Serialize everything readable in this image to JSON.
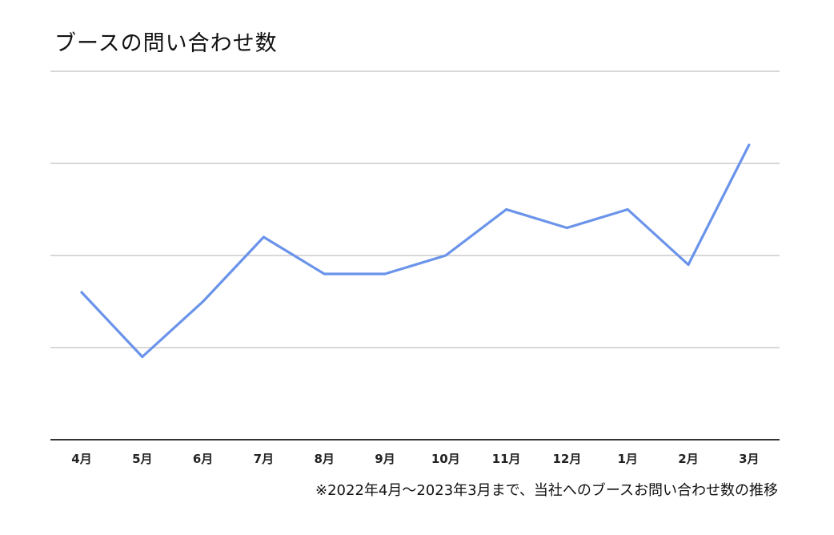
{
  "chart_data": {
    "type": "line",
    "title": "ブースの問い合わせ数",
    "categories": [
      "4月",
      "5月",
      "6月",
      "7月",
      "8月",
      "9月",
      "10月",
      "11月",
      "12月",
      "1月",
      "2月",
      "3月"
    ],
    "series": [
      {
        "values": [
          1.6,
          0.9,
          1.5,
          2.2,
          1.8,
          1.8,
          2.0,
          2.5,
          2.3,
          2.5,
          1.9,
          3.2
        ],
        "color": "#6a93ea"
      }
    ],
    "ylim": [
      0,
      4
    ],
    "grid": true,
    "y_tick_labels_visible": false,
    "note": "※2022年4月〜2023年3月まで、当社へのブースお問い合わせ数の推移"
  }
}
